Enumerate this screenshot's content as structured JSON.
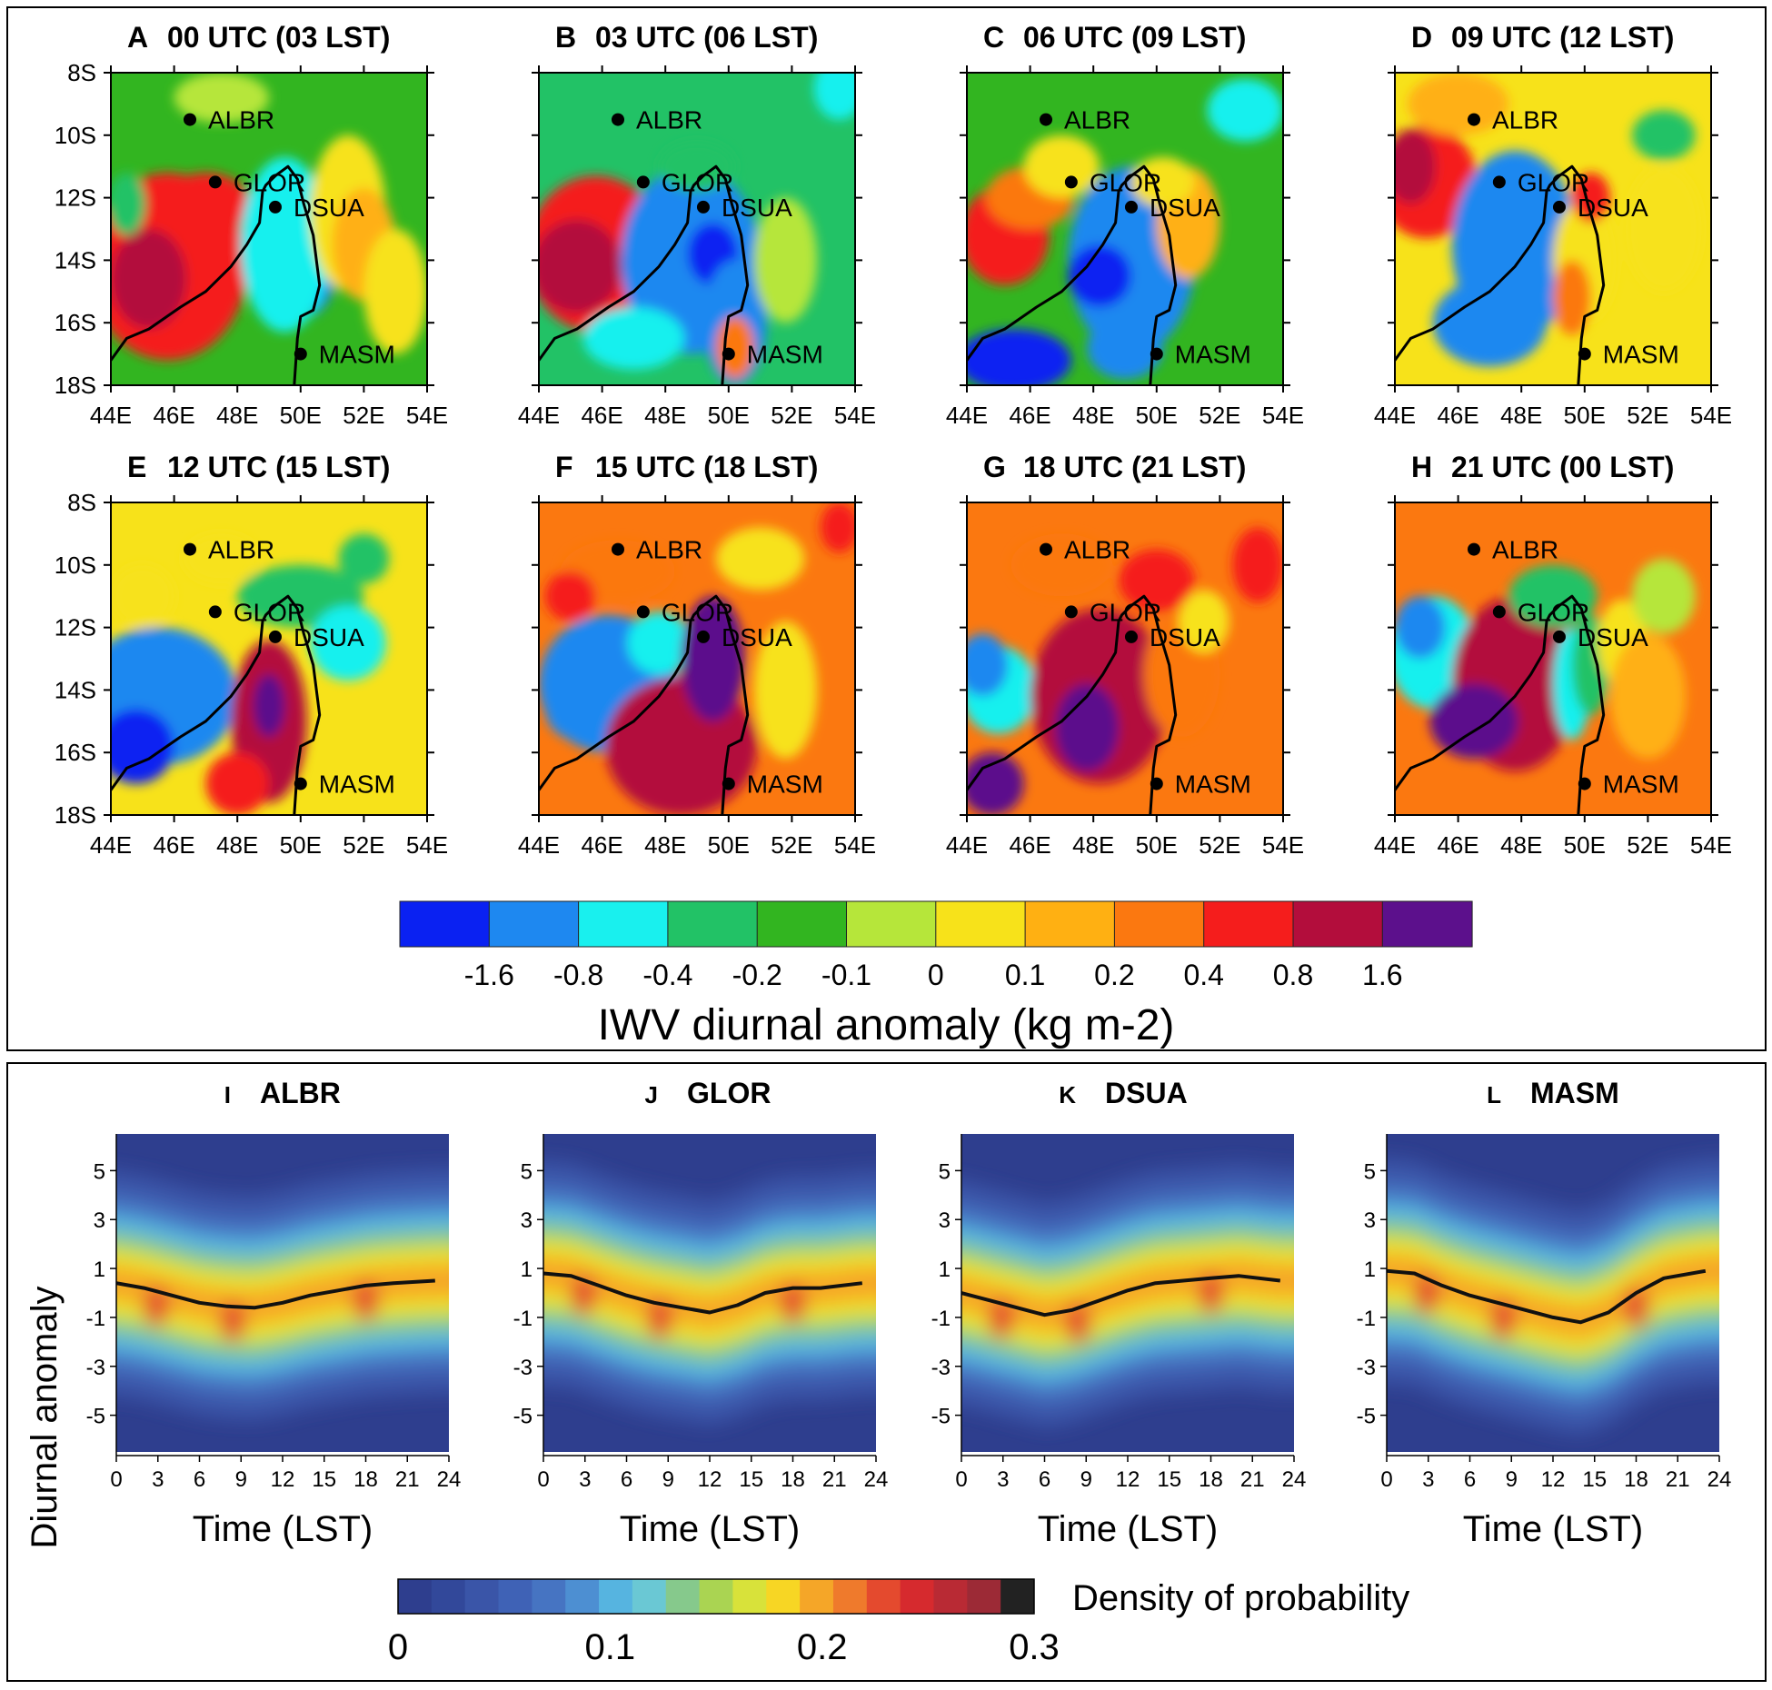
{
  "figure": {
    "top_colorbar_title": "IWV diurnal anomaly (kg m-2)",
    "bottom_colorbar_title": "Density of probability",
    "bottom_ylabel": "Diurnal anomaly",
    "bottom_xlabel": "Time (LST)"
  },
  "chart_data": [
    {
      "type": "heatmap",
      "name": "iwv_maps",
      "panels": [
        {
          "letter": "A",
          "title": "00 UTC (03 LST)"
        },
        {
          "letter": "B",
          "title": "03 UTC (06 LST)"
        },
        {
          "letter": "C",
          "title": "06 UTC (09 LST)"
        },
        {
          "letter": "D",
          "title": "09 UTC (12 LST)"
        },
        {
          "letter": "E",
          "title": "12 UTC (15 LST)"
        },
        {
          "letter": "F",
          "title": "15 UTC (18 LST)"
        },
        {
          "letter": "G",
          "title": "18 UTC (21 LST)"
        },
        {
          "letter": "H",
          "title": "21 UTC (00 LST)"
        }
      ],
      "x_ticks": [
        "44E",
        "46E",
        "48E",
        "50E",
        "52E",
        "54E"
      ],
      "y_ticks": [
        "8S",
        "10S",
        "12S",
        "14S",
        "16S",
        "18S"
      ],
      "xlim": [
        44,
        54
      ],
      "ylim": [
        -18,
        -8
      ],
      "stations": [
        {
          "name": "ALBR",
          "lon": 46.5,
          "lat": -9.5
        },
        {
          "name": "GLOR",
          "lon": 47.3,
          "lat": -11.5
        },
        {
          "name": "DSUA",
          "lon": 49.2,
          "lat": -12.3
        },
        {
          "name": "MASM",
          "lon": 50.0,
          "lat": -17.0
        }
      ],
      "colorbar_ticks": [
        "-1.6",
        "-0.8",
        "-0.4",
        "-0.2",
        "-0.1",
        "0",
        "0.1",
        "0.2",
        "0.4",
        "0.8",
        "1.6"
      ],
      "colorbar_colors": [
        "#0a21f2",
        "#1e88f0",
        "#19f0ee",
        "#22c266",
        "#32b520",
        "#b6e63a",
        "#f7e21a",
        "#ffb012",
        "#fb7810",
        "#f51d1c",
        "#b30d3c",
        "#5c108c"
      ]
    },
    {
      "type": "heatmap",
      "name": "diurnal_density",
      "panels": [
        {
          "letter": "I",
          "title": "ALBR",
          "mean_anomaly": [
            0.4,
            0.2,
            -0.1,
            -0.4,
            -0.55,
            -0.6,
            -0.4,
            -0.1,
            0.1,
            0.3,
            0.4,
            0.5
          ]
        },
        {
          "letter": "J",
          "title": "GLOR",
          "mean_anomaly": [
            0.8,
            0.7,
            0.3,
            -0.1,
            -0.4,
            -0.6,
            -0.8,
            -0.5,
            0.0,
            0.2,
            0.2,
            0.4
          ]
        },
        {
          "letter": "K",
          "title": "DSUA",
          "mean_anomaly": [
            0.0,
            -0.3,
            -0.6,
            -0.9,
            -0.7,
            -0.3,
            0.1,
            0.4,
            0.5,
            0.6,
            0.7,
            0.5
          ]
        },
        {
          "letter": "L",
          "title": "MASM",
          "mean_anomaly": [
            0.9,
            0.8,
            0.3,
            -0.1,
            -0.4,
            -0.7,
            -1.0,
            -1.2,
            -0.8,
            0.0,
            0.6,
            0.9
          ]
        }
      ],
      "x_ticks": [
        "0",
        "3",
        "6",
        "9",
        "12",
        "15",
        "18",
        "21",
        "24"
      ],
      "y_ticks": [
        "5",
        "3",
        "1",
        "-1",
        "-3",
        "-5"
      ],
      "xlim": [
        0,
        24
      ],
      "ylim": [
        -6.5,
        6.5
      ],
      "mean_times": [
        0,
        2,
        4,
        6,
        8,
        10,
        12,
        14,
        16,
        18,
        20,
        23
      ],
      "colorbar_ticks": [
        "0",
        "0.1",
        "0.2",
        "0.3"
      ],
      "colorbar_colors": [
        "#2e3e8e",
        "#32489a",
        "#3a55a8",
        "#3f62b6",
        "#4674c2",
        "#4d8fd2",
        "#56b4e0",
        "#6ac8d4",
        "#86c98c",
        "#aad452",
        "#d8e23a",
        "#f7d624",
        "#f5a628",
        "#ef7a2c",
        "#e44a2e",
        "#d62a2e",
        "#b92a34",
        "#9c2a36",
        "#222222"
      ]
    }
  ]
}
